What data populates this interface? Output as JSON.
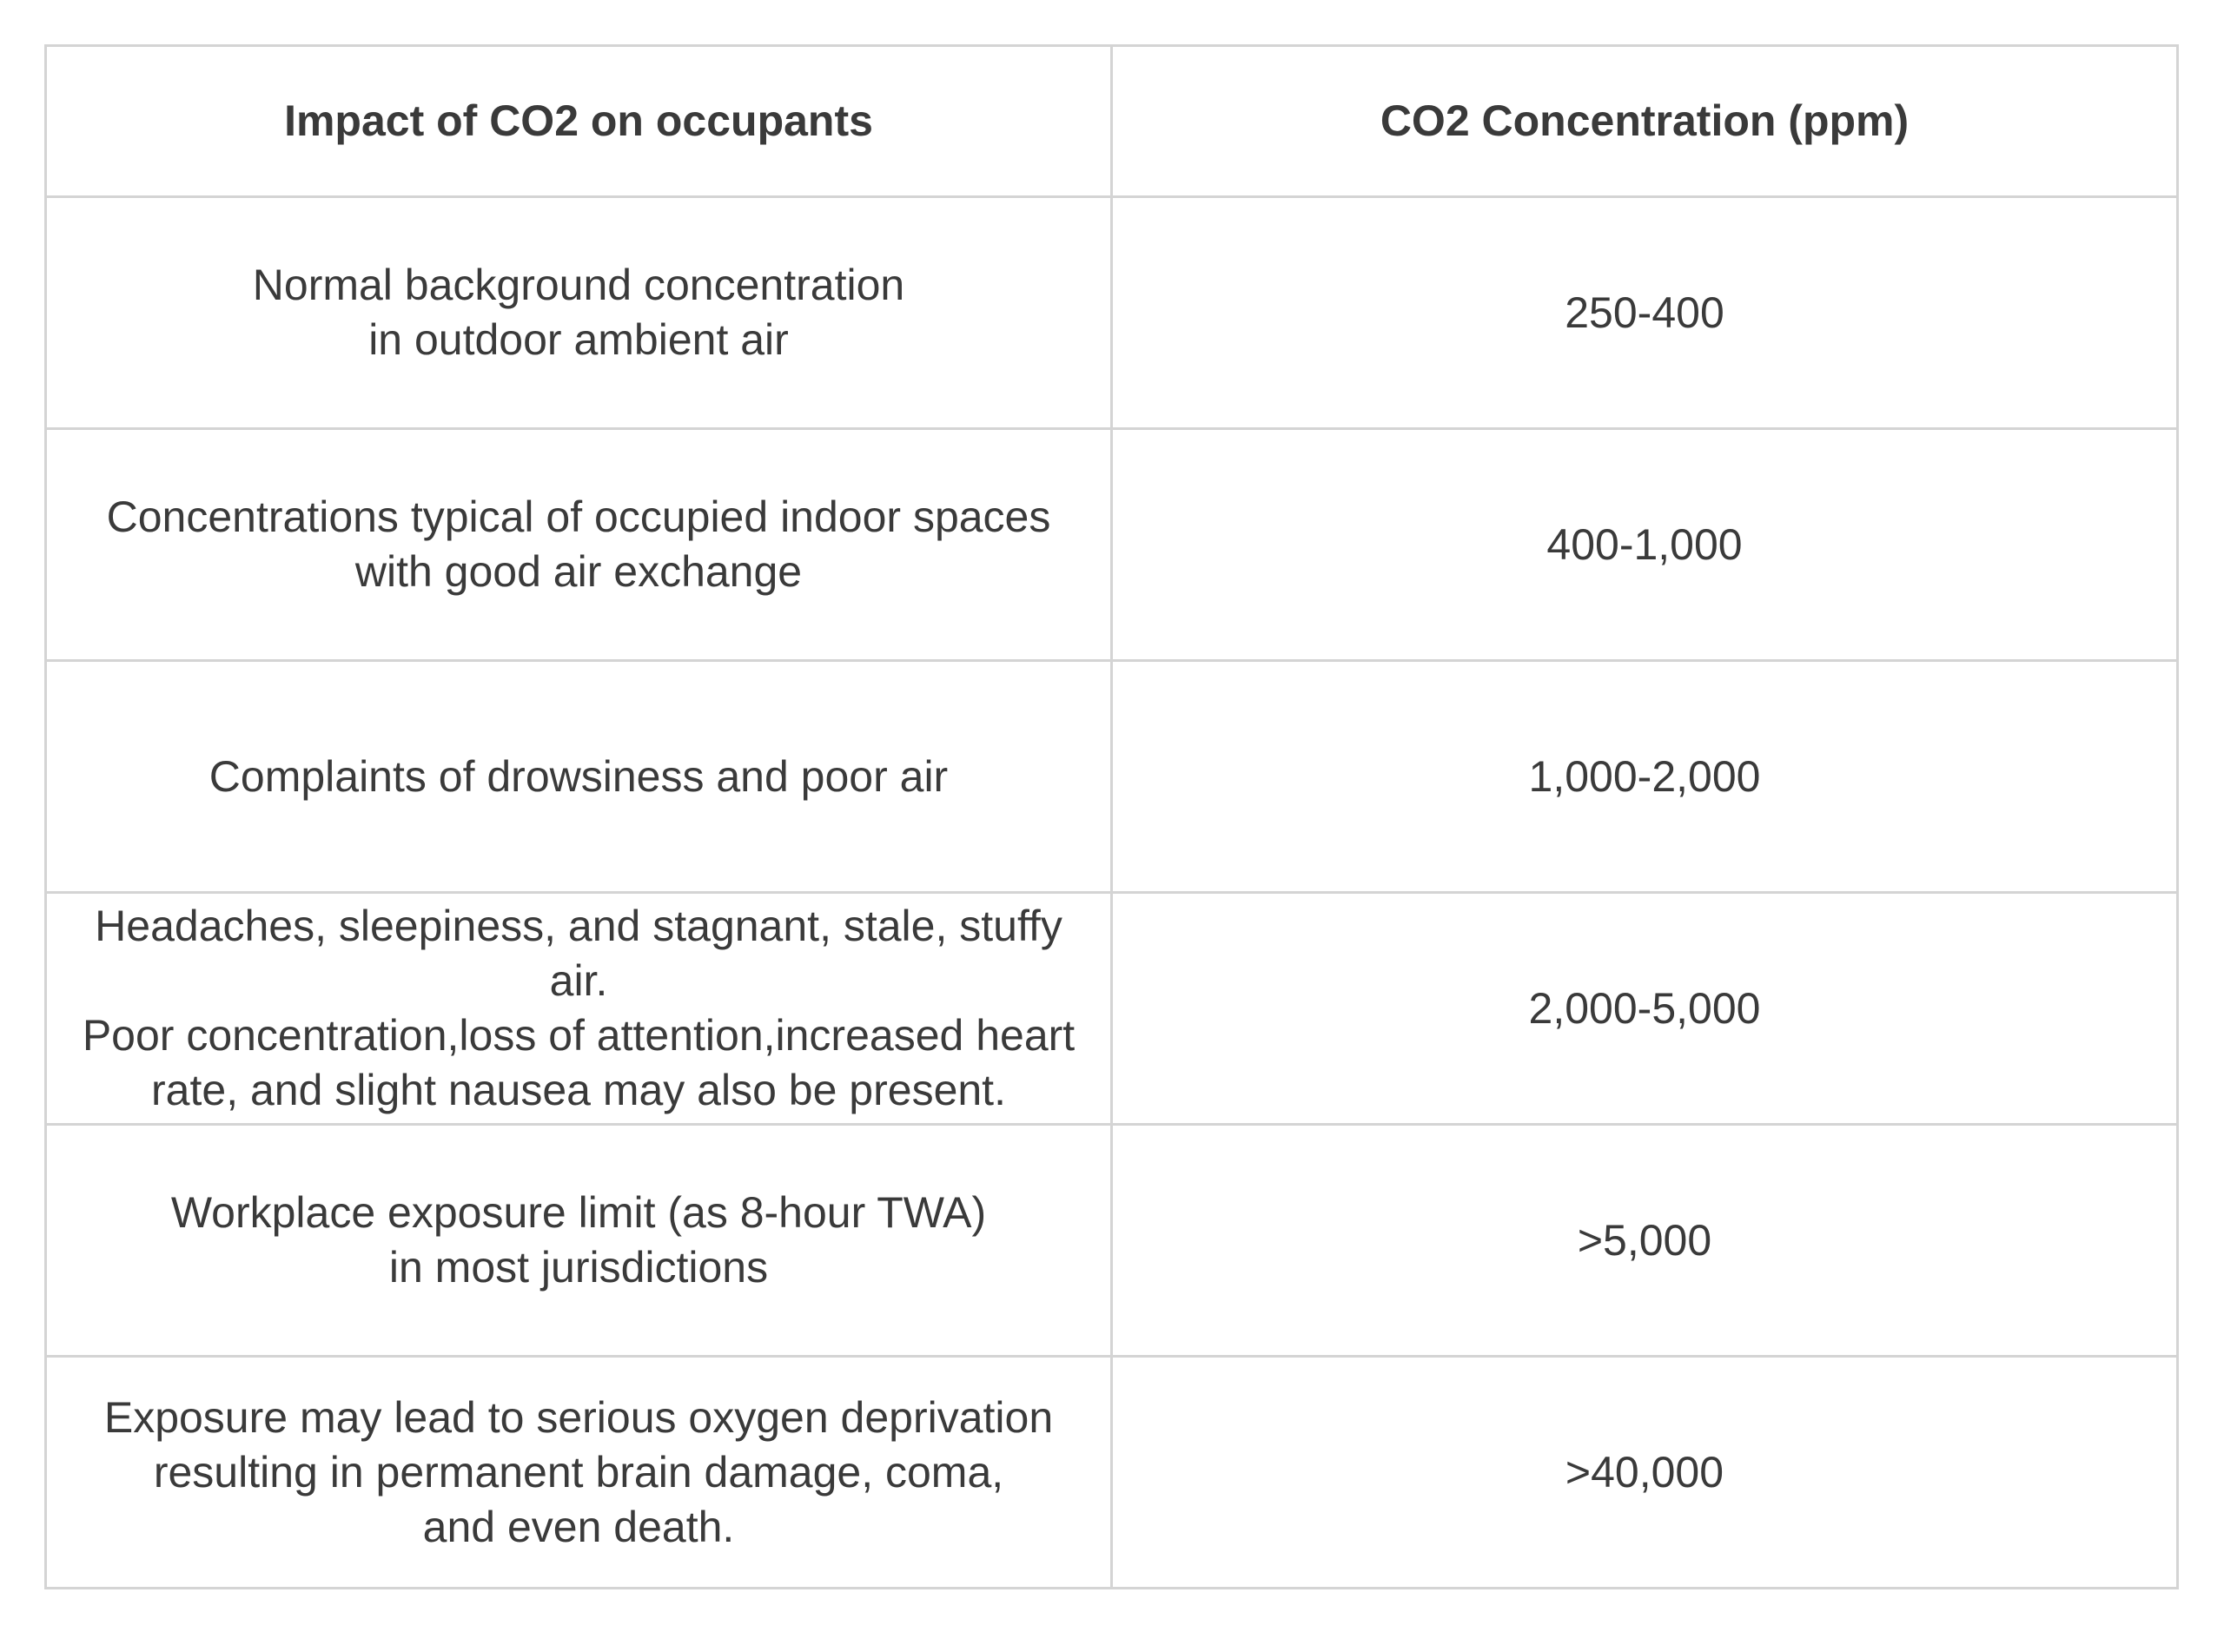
{
  "colors": {
    "background": "#ffffff",
    "border": "#d4d4d4",
    "text": "#3a3a3a"
  },
  "table": {
    "columns": {
      "impact_header": "Impact of CO2 on occupants",
      "concentration_header": "CO2 Concentration (ppm)"
    },
    "rows": [
      {
        "impact": [
          "Normal background concentration",
          "in outdoor ambient air"
        ],
        "concentration": "250-400"
      },
      {
        "impact": [
          "Concentrations typical of occupied indoor spaces",
          "with good air exchange"
        ],
        "concentration": "400-1,000"
      },
      {
        "impact": [
          "Complaints of drowsiness and poor air"
        ],
        "concentration": "1,000-2,000"
      },
      {
        "impact": [
          "Headaches, sleepiness, and stagnant, stale, stuffy air.",
          "Poor concentration,loss of attention,increased heart",
          "rate, and slight nausea may also be present."
        ],
        "concentration": "2,000-5,000"
      },
      {
        "impact": [
          "Workplace exposure limit (as 8-hour TWA)",
          "in most jurisdictions"
        ],
        "concentration": ">5,000"
      },
      {
        "impact": [
          "Exposure may lead to serious oxygen deprivation",
          "resulting in permanent brain damage, coma,",
          "and even death."
        ],
        "concentration": ">40,000"
      }
    ]
  },
  "chart_data": {
    "type": "table",
    "title": "",
    "columns": [
      "Impact of CO2 on occupants",
      "CO2 Concentration (ppm)"
    ],
    "rows": [
      [
        "Normal background concentration in outdoor ambient air",
        "250-400"
      ],
      [
        "Concentrations typical of occupied indoor spaces with good air exchange",
        "400-1,000"
      ],
      [
        "Complaints of drowsiness and poor air",
        "1,000-2,000"
      ],
      [
        "Headaches, sleepiness, and stagnant, stale, stuffy air. Poor concentration,loss of attention,increased heart rate, and slight nausea may also be present.",
        "2,000-5,000"
      ],
      [
        "Workplace exposure limit (as 8-hour TWA) in most jurisdictions",
        ">5,000"
      ],
      [
        "Exposure may lead to serious oxygen deprivation resulting in permanent brain damage, coma, and even death.",
        ">40,000"
      ]
    ]
  }
}
